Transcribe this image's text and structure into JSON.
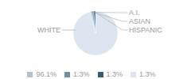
{
  "chart_data": {
    "type": "pie",
    "categories": [
      "WHITE",
      "A.I.",
      "ASIAN",
      "HISPANIC"
    ],
    "values": [
      96.1,
      1.3,
      1.3,
      1.3
    ],
    "value_labels": [
      "96.1%",
      "1.3%",
      "1.3%",
      "1.3%"
    ],
    "colors": [
      "#dce6f0",
      "#adc4d8",
      "#6b8fae",
      "#2e5f80"
    ],
    "legend": "bottom"
  }
}
